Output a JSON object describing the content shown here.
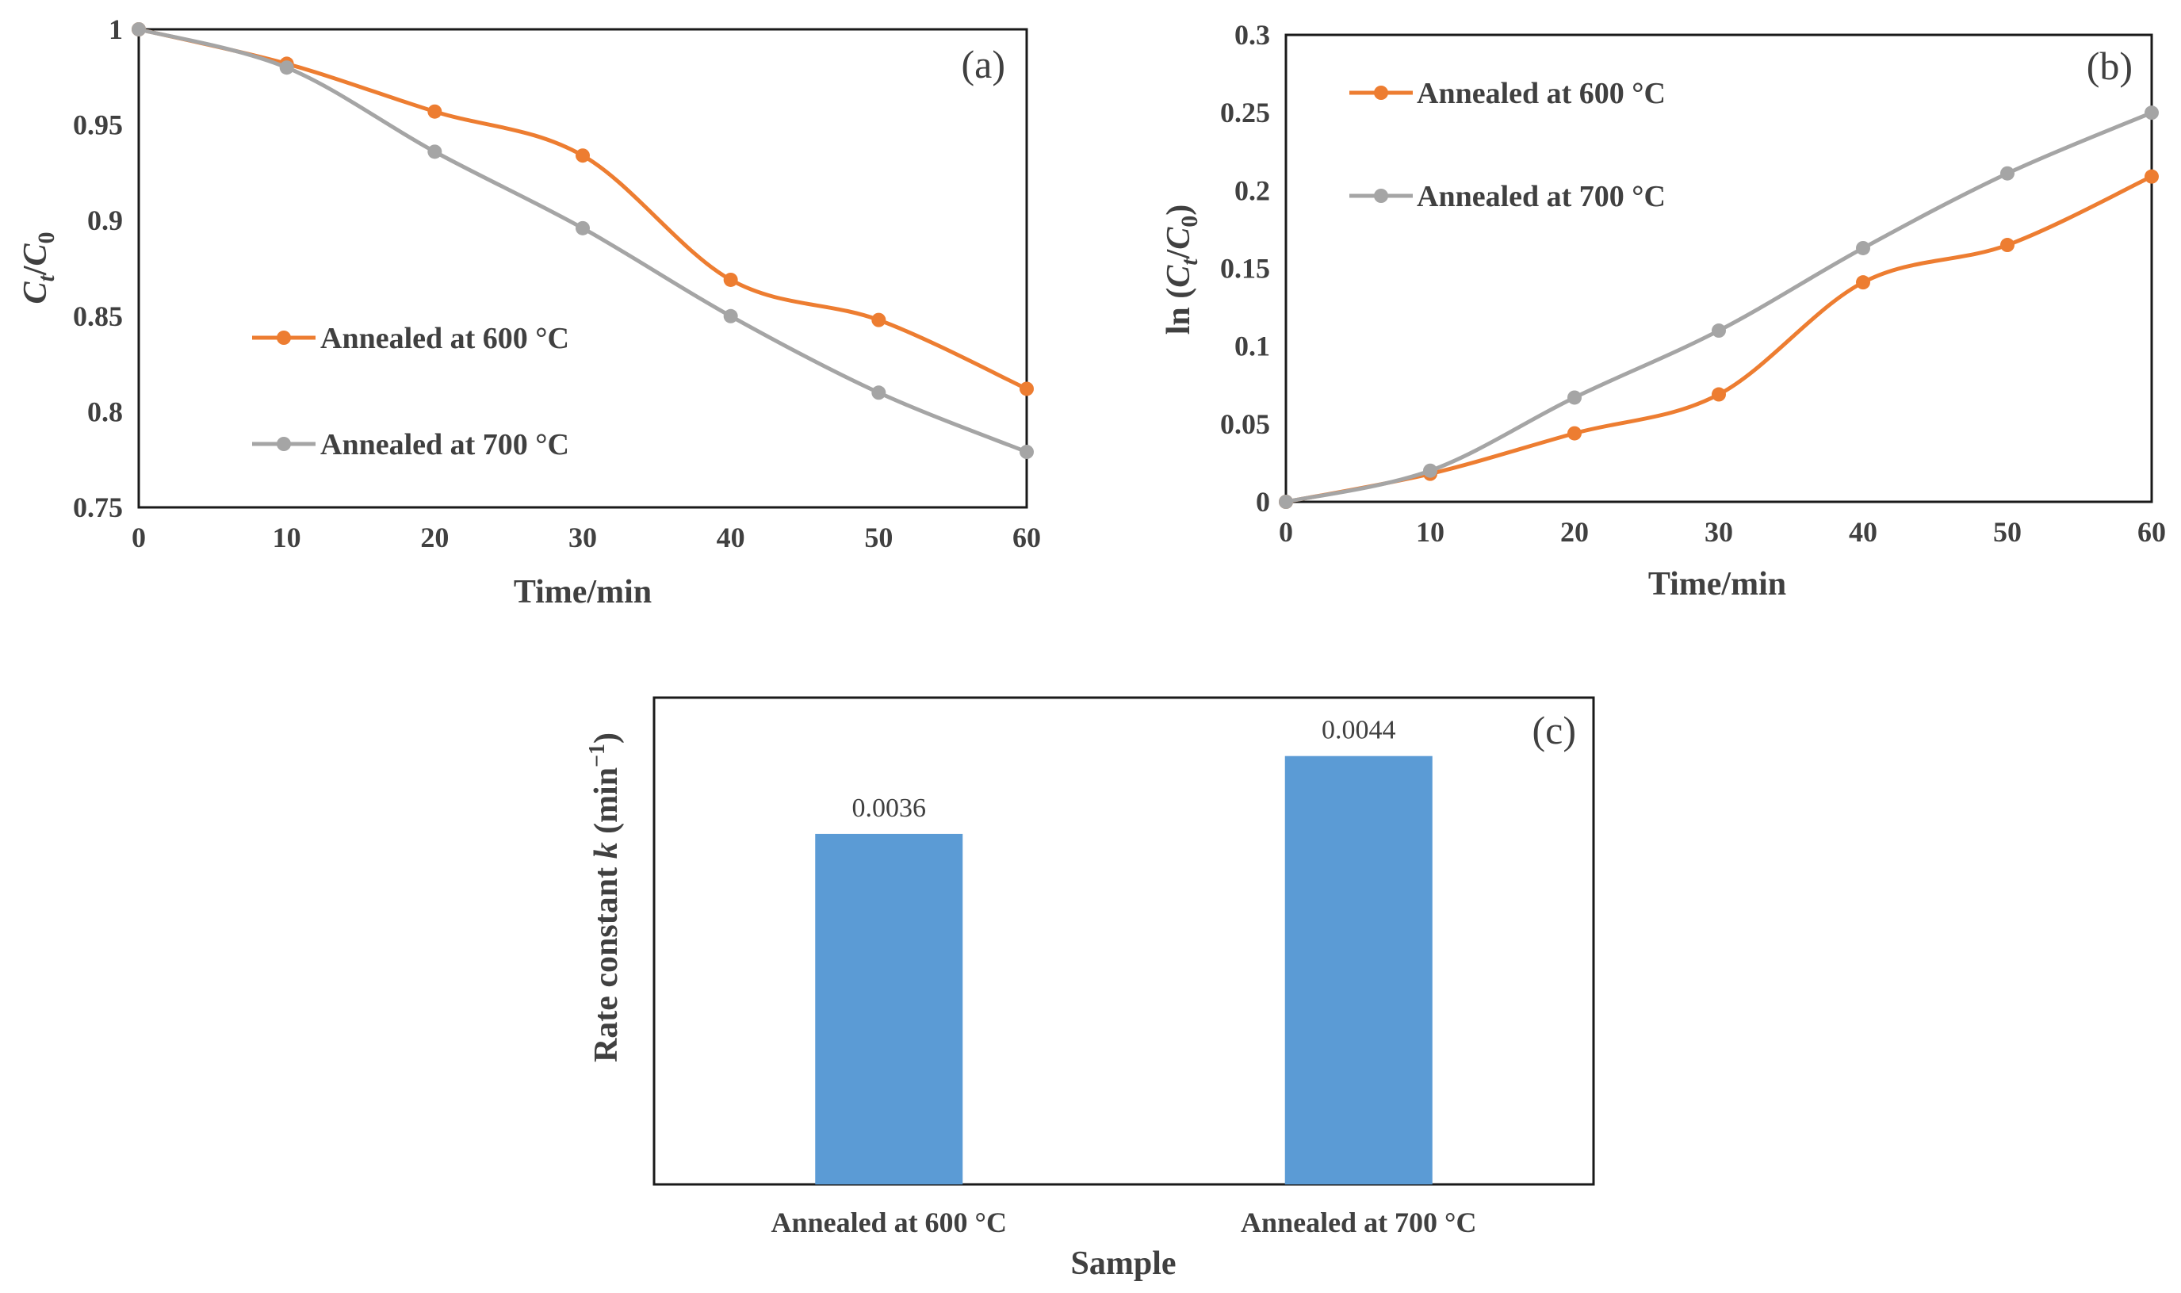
{
  "colors": {
    "series_600": "#ED7D31",
    "series_700": "#A5A5A5",
    "bar": "#5B9BD5",
    "text": "#404040",
    "frame": "#1a1a1a"
  },
  "chart_data": [
    {
      "panel": "(a)",
      "type": "line",
      "x": [
        0,
        10,
        20,
        30,
        40,
        50,
        60
      ],
      "xticks": [
        "0",
        "10",
        "20",
        "30",
        "40",
        "50",
        "60"
      ],
      "yticks": [
        "0.75",
        "0.8",
        "0.85",
        "0.9",
        "0.95",
        "1"
      ],
      "ylim": [
        0.75,
        1.0
      ],
      "xlabel": "Time/min",
      "ylabel": {
        "base1": "C",
        "sub1": "t",
        "sep": "/",
        "base2": "C",
        "sub2": "0"
      },
      "legend_position": "center-left",
      "series": [
        {
          "name": "Annealed at 600 °C",
          "values": [
            1.0,
            0.982,
            0.957,
            0.934,
            0.869,
            0.848,
            0.812
          ]
        },
        {
          "name": "Annealed at 700 °C",
          "values": [
            1.0,
            0.98,
            0.936,
            0.896,
            0.85,
            0.81,
            0.779
          ]
        }
      ]
    },
    {
      "panel": "(b)",
      "type": "line",
      "x": [
        0,
        10,
        20,
        30,
        40,
        50,
        60
      ],
      "xticks": [
        "0",
        "10",
        "20",
        "30",
        "40",
        "50",
        "60"
      ],
      "yticks": [
        "0",
        "0.05",
        "0.1",
        "0.15",
        "0.2",
        "0.25",
        "0.3"
      ],
      "ylim": [
        0,
        0.3
      ],
      "xlabel": "Time/min",
      "ylabel": {
        "prefix": "ln (",
        "base1": "C",
        "sub1": "t",
        "sep": "/",
        "base2": "C",
        "sub2": "0",
        "suffix": ")"
      },
      "legend_position": "top-left",
      "series": [
        {
          "name": "Annealed at 600 °C",
          "values": [
            0,
            0.018,
            0.044,
            0.069,
            0.141,
            0.165,
            0.209
          ]
        },
        {
          "name": "Annealed at 700 °C",
          "values": [
            0,
            0.02,
            0.067,
            0.11,
            0.163,
            0.211,
            0.25
          ]
        }
      ]
    },
    {
      "panel": "(c)",
      "type": "bar",
      "categories": [
        "Annealed at 600 °C",
        "Annealed at 700 °C"
      ],
      "values": [
        0.0036,
        0.0044
      ],
      "data_labels": [
        "0.0036",
        "0.0044"
      ],
      "ylim": [
        0,
        0.005
      ],
      "xlabel": "Sample",
      "ylabel": {
        "prefix": "Rate constant ",
        "italic": "k",
        "suffix": " (min",
        "sup": "−1",
        "end": ")"
      }
    }
  ]
}
